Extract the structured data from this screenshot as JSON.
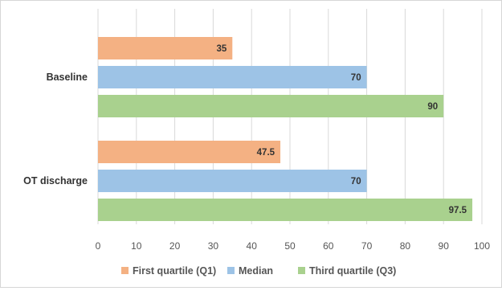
{
  "chart_data": {
    "type": "bar",
    "orientation": "horizontal",
    "categories": [
      "Baseline",
      "OT discharge"
    ],
    "series": [
      {
        "name": "First quartile (Q1)",
        "color": "#f4b183",
        "values": [
          35,
          47.5
        ]
      },
      {
        "name": "Median",
        "color": "#9dc3e6",
        "values": [
          70,
          70
        ]
      },
      {
        "name": "Third quartile (Q3)",
        "color": "#a9d18e",
        "values": [
          90,
          97.5
        ]
      }
    ],
    "value_labels": [
      [
        "35",
        "47.5"
      ],
      [
        "70",
        "70"
      ],
      [
        "90",
        "97.5"
      ]
    ],
    "xlim": [
      0,
      100
    ],
    "ticks": [
      0,
      10,
      20,
      30,
      40,
      50,
      60,
      70,
      80,
      90,
      100
    ],
    "tick_labels": [
      "0",
      "10",
      "20",
      "30",
      "40",
      "50",
      "60",
      "70",
      "80",
      "90",
      "100"
    ],
    "grid": true,
    "legend_position": "bottom",
    "title": "",
    "xlabel": "",
    "ylabel": ""
  }
}
